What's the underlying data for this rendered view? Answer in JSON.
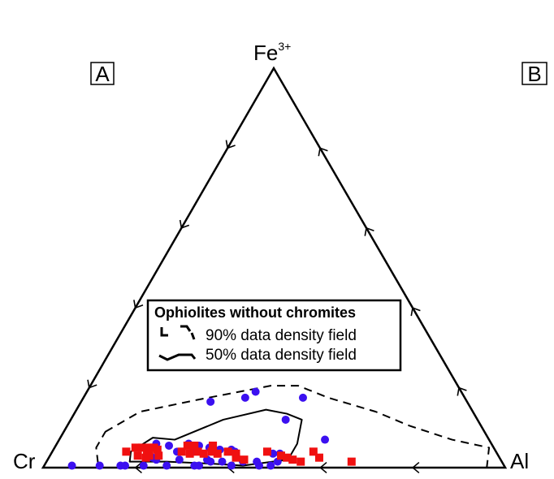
{
  "vertices": {
    "top": {
      "base": "Fe",
      "sup": "3+"
    },
    "left": "Cr",
    "right": "Al"
  },
  "panel_labels": [
    "A",
    "B"
  ],
  "legend": {
    "title": "Ophiolites without chromites",
    "items": [
      {
        "label": "90% data density field",
        "style": "dashed"
      },
      {
        "label": "50% data density field",
        "style": "solid"
      }
    ]
  },
  "colors": {
    "circles": "#3b10f0",
    "squares": "#f01010",
    "lines": "#000000"
  },
  "chart_data": {
    "type": "scatter",
    "coordinate_system": "ternary",
    "components": [
      "Fe3+",
      "Cr",
      "Al"
    ],
    "tick_interval": 0.2,
    "series": [
      {
        "marker": "circle",
        "color": "#3b10f0",
        "points": [
          {
            "fe": 0.165,
            "al": 0.28
          },
          {
            "fe": 0.19,
            "al": 0.365
          },
          {
            "fe": 0.175,
            "al": 0.35
          },
          {
            "fe": 0.175,
            "al": 0.475
          },
          {
            "fe": 0.12,
            "al": 0.465
          },
          {
            "fe": 0.07,
            "al": 0.575
          },
          {
            "fe": 0.06,
            "al": 0.215
          },
          {
            "fe": 0.055,
            "al": 0.245
          },
          {
            "fe": 0.06,
            "al": 0.285
          },
          {
            "fe": 0.055,
            "al": 0.31
          },
          {
            "fe": 0.04,
            "al": 0.305
          },
          {
            "fe": 0.045,
            "al": 0.36
          },
          {
            "fe": 0.045,
            "al": 0.385
          },
          {
            "fe": 0.04,
            "al": 0.395
          },
          {
            "fe": 0.035,
            "al": 0.48
          },
          {
            "fe": 0.035,
            "al": 0.495
          },
          {
            "fe": 0.04,
            "al": 0.27
          },
          {
            "fe": 0.05,
            "al": 0.335
          },
          {
            "fe": 0.005,
            "al": 0.06
          },
          {
            "fe": 0.005,
            "al": 0.12
          },
          {
            "fe": 0.005,
            "al": 0.165
          },
          {
            "fe": 0.005,
            "al": 0.175
          },
          {
            "fe": 0.005,
            "al": 0.215
          },
          {
            "fe": 0.005,
            "al": 0.265
          },
          {
            "fe": 0.005,
            "al": 0.325
          },
          {
            "fe": 0.005,
            "al": 0.335
          },
          {
            "fe": 0.005,
            "al": 0.405
          },
          {
            "fe": 0.005,
            "al": 0.465
          },
          {
            "fe": 0.005,
            "al": 0.49
          },
          {
            "fe": 0.015,
            "al": 0.355
          },
          {
            "fe": 0.015,
            "al": 0.38
          },
          {
            "fe": 0.015,
            "al": 0.425
          },
          {
            "fe": 0.015,
            "al": 0.455
          },
          {
            "fe": 0.015,
            "al": 0.5
          },
          {
            "fe": 0.02,
            "al": 0.285
          },
          {
            "fe": 0.025,
            "al": 0.225
          },
          {
            "fe": 0.02,
            "al": 0.345
          },
          {
            "fe": 0.02,
            "al": 0.235
          }
        ]
      },
      {
        "marker": "square",
        "color": "#f01010",
        "points": [
          {
            "fe": 0.04,
            "al": 0.16
          },
          {
            "fe": 0.05,
            "al": 0.175
          },
          {
            "fe": 0.05,
            "al": 0.19
          },
          {
            "fe": 0.05,
            "al": 0.205
          },
          {
            "fe": 0.05,
            "al": 0.215
          },
          {
            "fe": 0.04,
            "al": 0.205
          },
          {
            "fe": 0.045,
            "al": 0.225
          },
          {
            "fe": 0.03,
            "al": 0.19
          },
          {
            "fe": 0.03,
            "al": 0.215
          },
          {
            "fe": 0.03,
            "al": 0.235
          },
          {
            "fe": 0.025,
            "al": 0.21
          },
          {
            "fe": 0.055,
            "al": 0.285
          },
          {
            "fe": 0.055,
            "al": 0.3
          },
          {
            "fe": 0.04,
            "al": 0.28
          },
          {
            "fe": 0.035,
            "al": 0.3
          },
          {
            "fe": 0.04,
            "al": 0.315
          },
          {
            "fe": 0.035,
            "al": 0.33
          },
          {
            "fe": 0.055,
            "al": 0.34
          },
          {
            "fe": 0.04,
            "al": 0.345
          },
          {
            "fe": 0.035,
            "al": 0.36
          },
          {
            "fe": 0.04,
            "al": 0.38
          },
          {
            "fe": 0.035,
            "al": 0.4
          },
          {
            "fe": 0.025,
            "al": 0.405
          },
          {
            "fe": 0.02,
            "al": 0.425
          },
          {
            "fe": 0.04,
            "al": 0.465
          },
          {
            "fe": 0.03,
            "al": 0.5
          },
          {
            "fe": 0.025,
            "al": 0.515
          },
          {
            "fe": 0.02,
            "al": 0.53
          },
          {
            "fe": 0.015,
            "al": 0.55
          },
          {
            "fe": 0.04,
            "al": 0.565
          },
          {
            "fe": 0.025,
            "al": 0.585
          },
          {
            "fe": 0.015,
            "al": 0.66
          }
        ]
      }
    ],
    "contours": [
      {
        "level": "90% data density field",
        "style": "dashed",
        "points": [
          {
            "fe": 0.09,
            "al": 0.09
          },
          {
            "fe": 0.14,
            "al": 0.14
          },
          {
            "fe": 0.17,
            "al": 0.25
          },
          {
            "fe": 0.205,
            "al": 0.39
          },
          {
            "fe": 0.205,
            "al": 0.45
          },
          {
            "fe": 0.175,
            "al": 0.53
          },
          {
            "fe": 0.14,
            "al": 0.65
          },
          {
            "fe": 0.105,
            "al": 0.74
          },
          {
            "fe": 0.07,
            "al": 0.85
          },
          {
            "fe": 0.05,
            "al": 0.94
          },
          {
            "fe": 0.0,
            "al": 0.96
          },
          {
            "fe": 0.0,
            "al": 0.12
          },
          {
            "fe": 0.05,
            "al": 0.09
          }
        ]
      },
      {
        "level": "50% data density field",
        "style": "solid",
        "points": [
          {
            "fe": 0.075,
            "al": 0.2
          },
          {
            "fe": 0.07,
            "al": 0.25
          },
          {
            "fe": 0.12,
            "al": 0.33
          },
          {
            "fe": 0.145,
            "al": 0.41
          },
          {
            "fe": 0.135,
            "al": 0.46
          },
          {
            "fe": 0.12,
            "al": 0.5
          },
          {
            "fe": 0.06,
            "al": 0.52
          },
          {
            "fe": 0.02,
            "al": 0.52
          },
          {
            "fe": 0.005,
            "al": 0.43
          },
          {
            "fe": 0.01,
            "al": 0.36
          },
          {
            "fe": 0.015,
            "al": 0.26
          },
          {
            "fe": 0.015,
            "al": 0.18
          },
          {
            "fe": 0.04,
            "al": 0.17
          }
        ]
      }
    ]
  }
}
